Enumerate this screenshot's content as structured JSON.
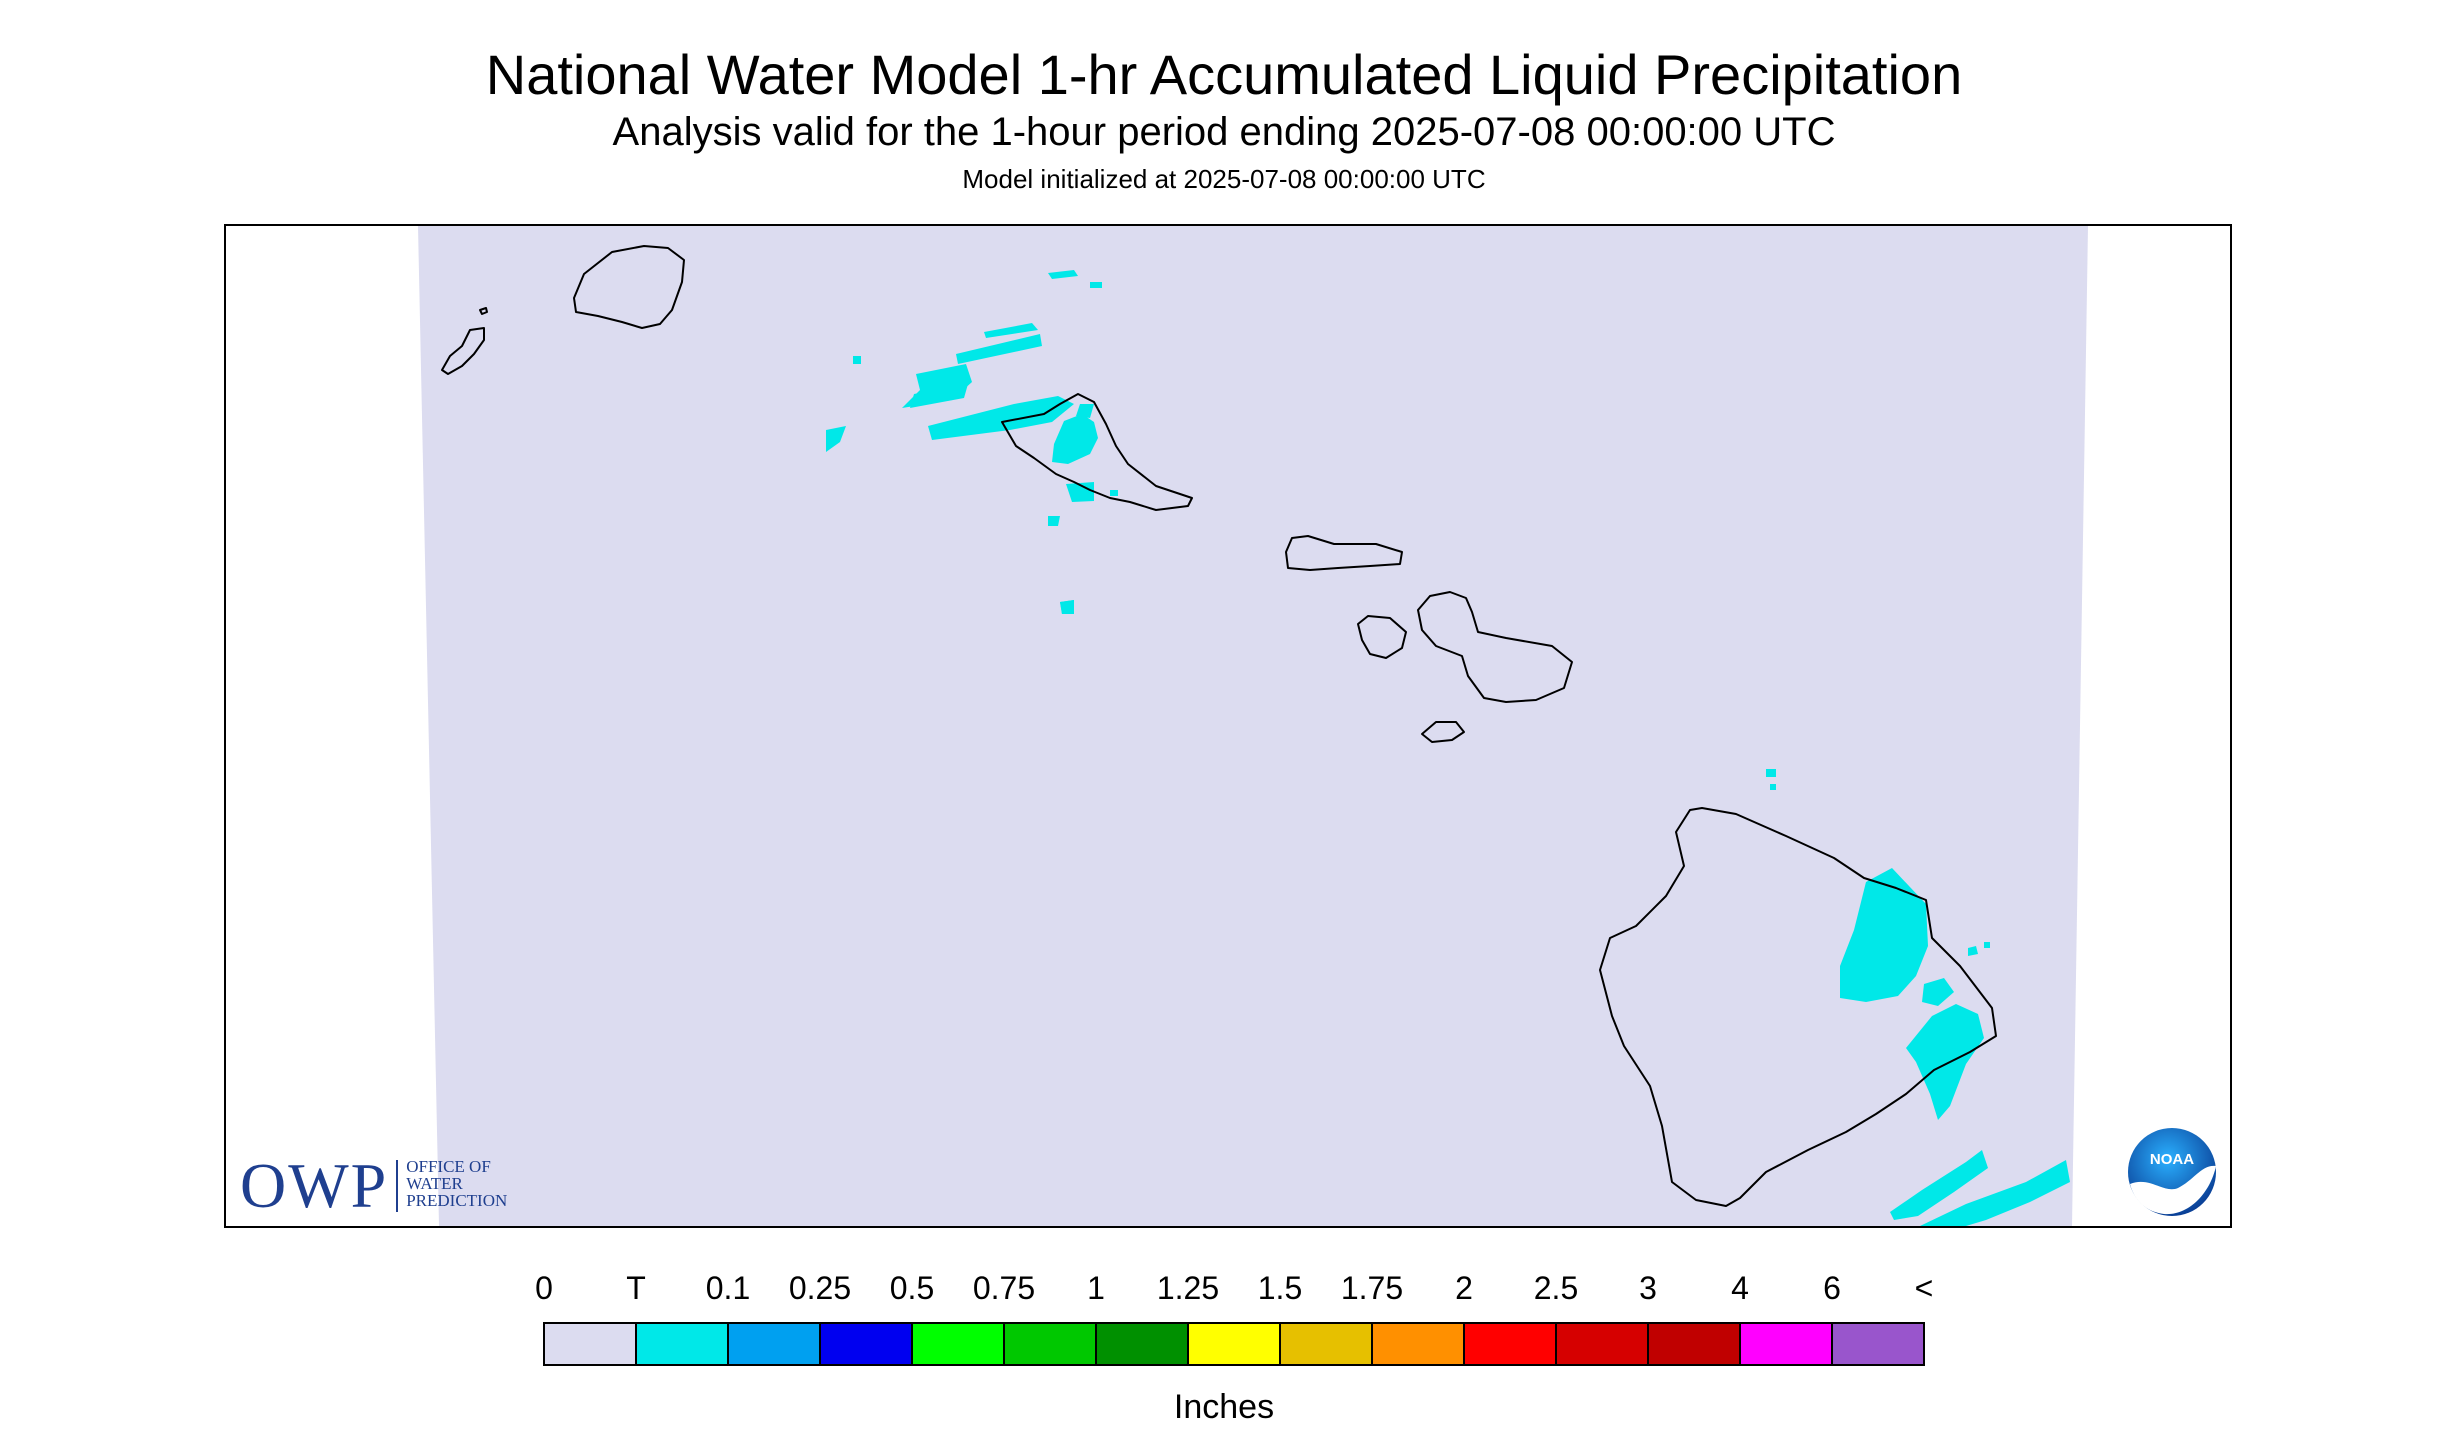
{
  "header": {
    "title": "National Water Model 1-hr Accumulated Liquid Precipitation",
    "subtitle": "Analysis valid for the 1-hour period ending 2025-07-08 00:00:00 UTC",
    "init": "Model initialized at 2025-07-08 00:00:00 UTC"
  },
  "logos": {
    "owp_big": "OWP",
    "owp_line1": "OFFICE OF",
    "owp_line2": "WATER",
    "owp_line3": "PREDICTION",
    "noaa": "NOAA"
  },
  "legend": {
    "labels": [
      "0",
      "T",
      "0.1",
      "0.25",
      "0.5",
      "0.75",
      "1",
      "1.25",
      "1.5",
      "1.75",
      "2",
      "2.5",
      "3",
      "4",
      "6",
      "<"
    ],
    "colors": [
      "#dcdcf0",
      "#00e8e8",
      "#00a0f0",
      "#0000f0",
      "#00ff00",
      "#00c800",
      "#009000",
      "#ffff00",
      "#e6c000",
      "#ff9000",
      "#ff0000",
      "#d60000",
      "#c00000",
      "#ff00ff",
      "#9955cc"
    ],
    "units": "Inches"
  },
  "map": {
    "domain_fill": "#dcdcf0",
    "precip_fill": "#00e8e8",
    "coast_color": "#000000"
  }
}
